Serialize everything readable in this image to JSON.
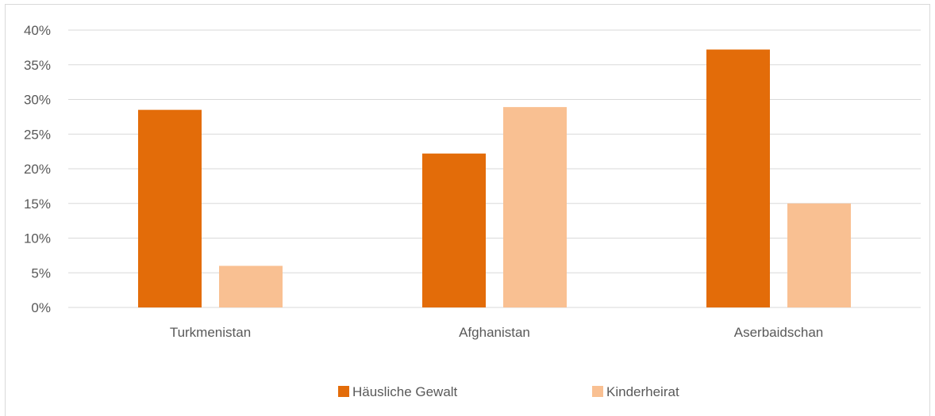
{
  "chart_data": {
    "type": "bar",
    "categories": [
      "Turkmenistan",
      "Afghanistan",
      "Aserbaidschan"
    ],
    "series": [
      {
        "name": "Häusliche Gewalt",
        "values": [
          28.5,
          22.2,
          37.2
        ],
        "color": "#e36c09"
      },
      {
        "name": "Kinderheirat",
        "values": [
          6.0,
          28.9,
          15.0
        ],
        "color": "#f9c092"
      }
    ],
    "ylim": [
      0,
      40
    ],
    "y_ticks": [
      "0%",
      "5%",
      "10%",
      "15%",
      "20%",
      "25%",
      "30%",
      "35%",
      "40%"
    ],
    "y_tick_values": [
      0,
      5,
      10,
      15,
      20,
      25,
      30,
      35,
      40
    ],
    "grid": true,
    "legend_position": "bottom",
    "gridline_color": "#d9d9d9"
  }
}
